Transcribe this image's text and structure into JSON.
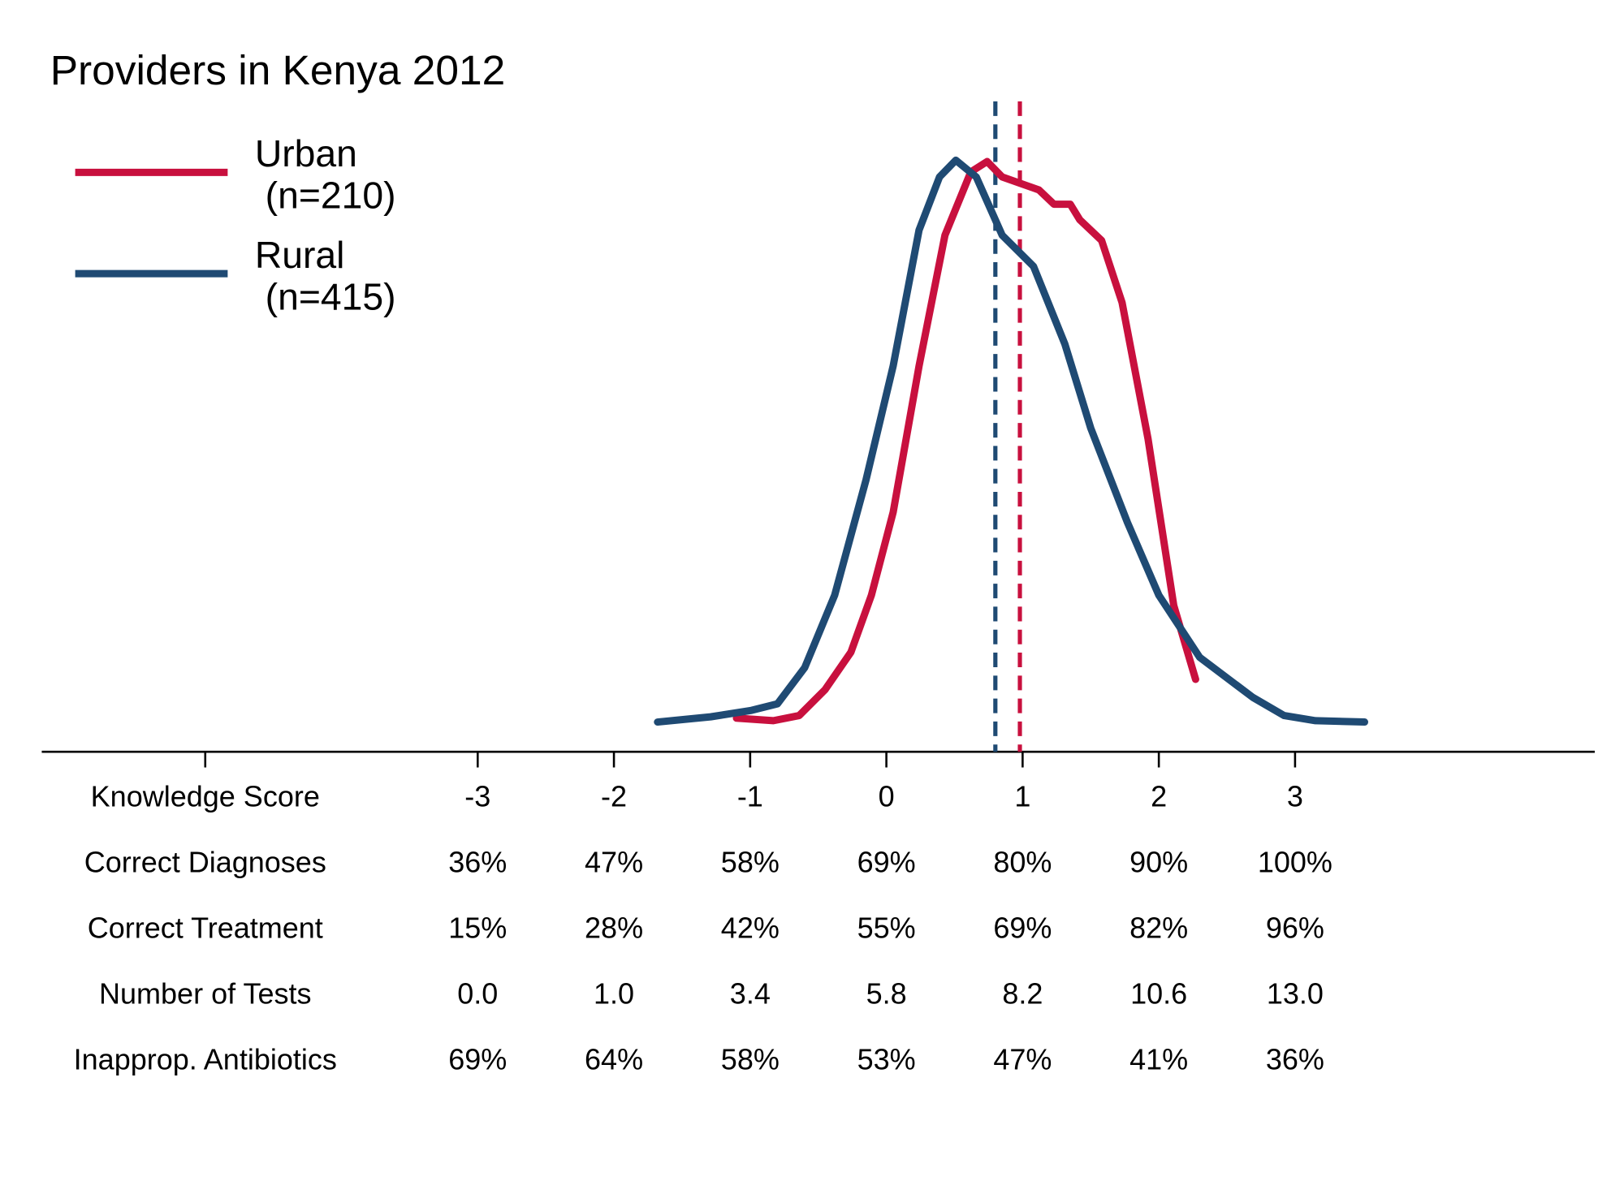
{
  "chart_data": {
    "type": "line",
    "title": "Providers in Kenya 2012",
    "xlim": [
      -6.2,
      5.2
    ],
    "ylim": [
      0,
      0.5
    ],
    "xticks": [
      {
        "value": -5,
        "label": "Knowledge Score"
      },
      -3,
      -2,
      -1,
      0,
      1,
      2,
      3
    ],
    "series": [
      {
        "name": "Urban\n (n=210)",
        "color": "#c8103e",
        "x": [
          -1.1,
          -0.83,
          -0.64,
          -0.45,
          -0.26,
          -0.11,
          0.05,
          0.24,
          0.43,
          0.62,
          0.74,
          0.85,
          0.96,
          1.12,
          1.23,
          1.35,
          1.42,
          1.58,
          1.73,
          1.92,
          2.11,
          2.27
        ],
        "values": [
          0.026,
          0.024,
          0.028,
          0.048,
          0.077,
          0.121,
          0.185,
          0.298,
          0.399,
          0.448,
          0.456,
          0.444,
          0.44,
          0.434,
          0.423,
          0.423,
          0.411,
          0.395,
          0.347,
          0.242,
          0.113,
          0.056
        ]
      },
      {
        "name": "Rural\n (n=415)",
        "color": "#1f4a73",
        "x": [
          -1.68,
          -1.29,
          -0.99,
          -0.8,
          -0.6,
          -0.38,
          -0.15,
          0.05,
          0.24,
          0.39,
          0.51,
          0.66,
          0.85,
          1.08,
          1.31,
          1.5,
          1.77,
          2.0,
          2.3,
          2.69,
          2.92,
          3.15,
          3.51
        ],
        "values": [
          0.023,
          0.027,
          0.032,
          0.037,
          0.065,
          0.121,
          0.21,
          0.298,
          0.403,
          0.444,
          0.457,
          0.444,
          0.399,
          0.375,
          0.315,
          0.25,
          0.177,
          0.121,
          0.073,
          0.042,
          0.028,
          0.024,
          0.023
        ]
      }
    ],
    "mean_lines": [
      {
        "value": 0.8,
        "color": "#1f4a73"
      },
      {
        "value": 0.98,
        "color": "#c8103e"
      }
    ],
    "table_rows": [
      {
        "label": "Correct Diagnoses",
        "values": [
          "36%",
          "47%",
          "58%",
          "69%",
          "80%",
          "90%",
          "100%"
        ]
      },
      {
        "label": "Correct Treatment",
        "values": [
          "15%",
          "28%",
          "42%",
          "55%",
          "69%",
          "82%",
          "96%"
        ]
      },
      {
        "label": "Number of Tests",
        "values": [
          "0.0",
          "1.0",
          "3.4",
          "5.8",
          "8.2",
          "10.6",
          "13.0"
        ]
      },
      {
        "label": "Inapprop. Antibiotics",
        "values": [
          "69%",
          "64%",
          "58%",
          "53%",
          "47%",
          "41%",
          "36%"
        ]
      }
    ]
  }
}
